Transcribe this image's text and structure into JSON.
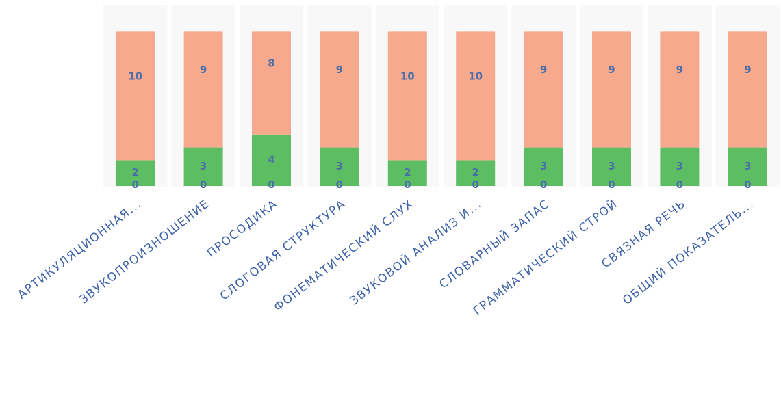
{
  "chart_data": {
    "type": "bar",
    "stacked": true,
    "categories": [
      "АРТИКУЛЯЦИОННАЯ...",
      "ЗВУКОПРОИЗНОШЕНИЕ",
      "ПРОСОДИКА",
      "СЛОГОВАЯ СТРУКТУРА",
      "ФОНЕМАТИЧЕСКИЙ СЛУХ",
      "ЗВУКОВОЙ АНАЛИЗ И...",
      "СЛОВАРНЫЙ ЗАПАС",
      "ГРАММАТИЧЕСКИЙ СТРОЙ",
      "СВЯЗНАЯ РЕЧЬ",
      "ОБЩИЙ ПОКАЗАТЕЛЬ..."
    ],
    "series": [
      {
        "values": [
          0,
          0,
          0,
          0,
          0,
          0,
          0,
          0,
          0,
          0
        ],
        "color": "#5b9bd5"
      },
      {
        "values": [
          2,
          3,
          4,
          3,
          2,
          2,
          3,
          3,
          3,
          3
        ],
        "color": "#5cbd63"
      },
      {
        "values": [
          10,
          9,
          8,
          9,
          10,
          10,
          9,
          9,
          9,
          9
        ],
        "color": "#f6a98d"
      }
    ],
    "ylim": [
      0,
      12
    ],
    "grid": false,
    "legend": "none",
    "label_color": "#4a6ea9",
    "category_label_color": "#3f63a8",
    "column_band_color": "#f4f4f4"
  }
}
